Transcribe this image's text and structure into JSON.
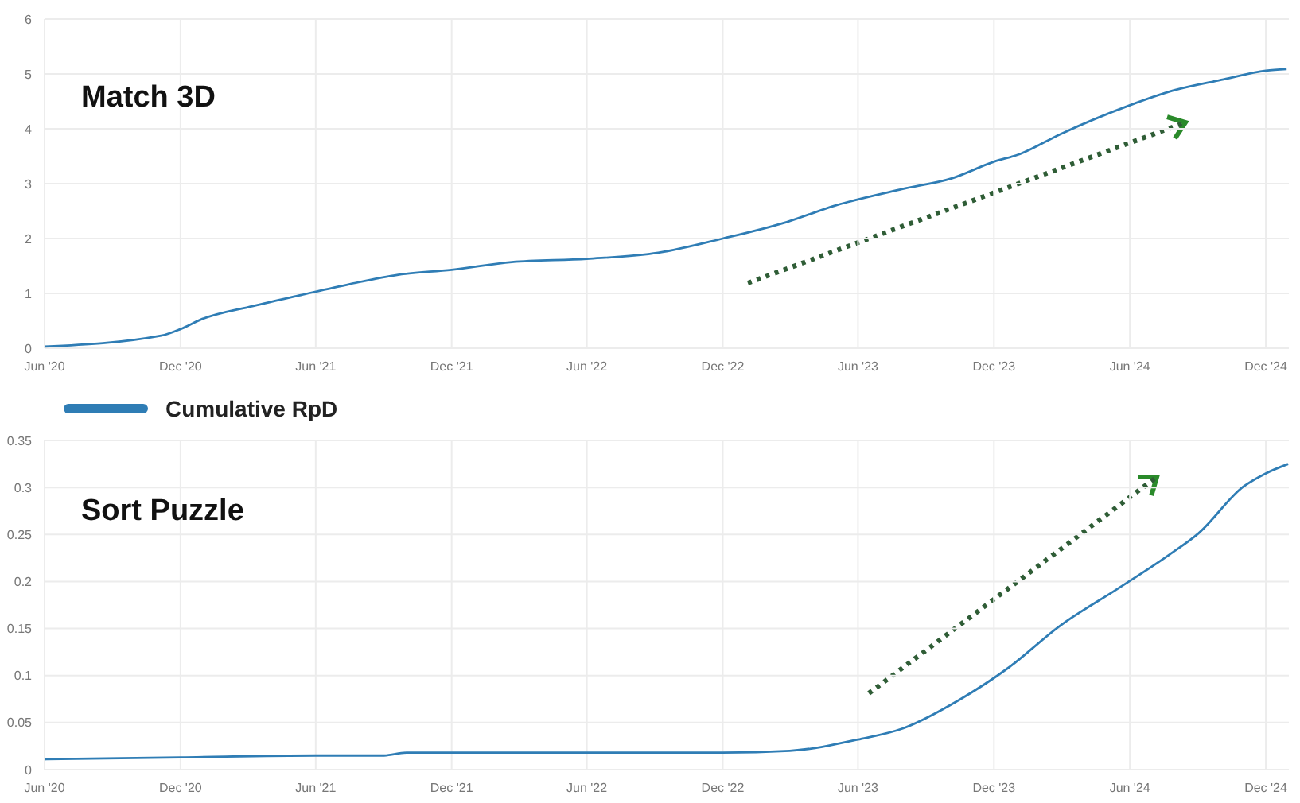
{
  "chart_data": [
    {
      "type": "line",
      "title": "Match 3D",
      "legend": "bottom",
      "grid": true,
      "x": [
        "2020-06-01",
        "2020-11-05",
        "2020-12-01",
        "2020-12-28",
        "2021-03-09",
        "2021-05-12",
        "2021-07-17",
        "2021-09-20",
        "2021-12-01",
        "2022-02-20",
        "2022-06-01",
        "2022-09-05",
        "2022-12-01",
        "2023-02-25",
        "2023-05-01",
        "2023-07-30",
        "2023-10-06",
        "2023-12-01",
        "2024-01-05",
        "2024-02-28",
        "2024-06-01",
        "2024-07-30",
        "2024-10-05",
        "2024-12-01",
        "2024-12-29"
      ],
      "series": [
        {
          "name": "Cumulative RpD",
          "color": "#2f7db5",
          "values": [
            0.03,
            0.23,
            0.35,
            0.52,
            0.77,
            0.97,
            1.17,
            1.34,
            1.43,
            1.57,
            1.63,
            1.74,
            2.0,
            2.3,
            2.6,
            2.9,
            3.1,
            3.4,
            3.54,
            3.9,
            4.43,
            4.7,
            4.9,
            5.06,
            5.09
          ]
        }
      ],
      "xlim": [
        "2020-06-01",
        "2025-01-01"
      ],
      "xticks": [
        {
          "value": "2020-06-01",
          "label": "Jun '20"
        },
        {
          "value": "2020-12-01",
          "label": "Dec '20"
        },
        {
          "value": "2021-06-01",
          "label": "Jun '21"
        },
        {
          "value": "2021-12-01",
          "label": "Dec '21"
        },
        {
          "value": "2022-06-01",
          "label": "Jun '22"
        },
        {
          "value": "2022-12-01",
          "label": "Dec '22"
        },
        {
          "value": "2023-06-01",
          "label": "Jun '23"
        },
        {
          "value": "2023-12-01",
          "label": "Dec '23"
        },
        {
          "value": "2024-06-01",
          "label": "Jun '24"
        },
        {
          "value": "2024-12-01",
          "label": "Dec '24"
        }
      ],
      "ylim": [
        0,
        6
      ],
      "yticks": [
        0,
        1,
        2,
        3,
        4,
        5,
        6
      ]
    },
    {
      "type": "line",
      "title": "Sort Puzzle",
      "grid": true,
      "x": [
        "2020-06-01",
        "2020-12-01",
        "2021-06-01",
        "2021-09-01",
        "2021-10-01",
        "2021-12-01",
        "2022-12-01",
        "2023-03-01",
        "2023-06-01",
        "2023-08-01",
        "2023-10-15",
        "2023-12-20",
        "2024-02-28",
        "2024-05-15",
        "2024-07-25",
        "2024-09-01",
        "2024-11-01",
        "2024-12-01",
        "2024-12-31"
      ],
      "series": [
        {
          "color": "#2f7db5",
          "values": [
            0.011,
            0.013,
            0.015,
            0.015,
            0.018,
            0.018,
            0.018,
            0.02,
            0.032,
            0.044,
            0.074,
            0.108,
            0.153,
            0.192,
            0.229,
            0.251,
            0.301,
            0.315,
            0.325
          ]
        }
      ],
      "xlim": [
        "2020-06-01",
        "2025-01-01"
      ],
      "xticks": [
        {
          "value": "2020-06-01",
          "label": "Jun '20"
        },
        {
          "value": "2020-12-01",
          "label": "Dec '20"
        },
        {
          "value": "2021-06-01",
          "label": "Jun '21"
        },
        {
          "value": "2021-12-01",
          "label": "Dec '21"
        },
        {
          "value": "2022-06-01",
          "label": "Jun '22"
        },
        {
          "value": "2022-12-01",
          "label": "Dec '22"
        },
        {
          "value": "2023-06-01",
          "label": "Jun '23"
        },
        {
          "value": "2023-12-01",
          "label": "Dec '23"
        },
        {
          "value": "2024-06-01",
          "label": "Jun '24"
        },
        {
          "value": "2024-12-01",
          "label": "Dec '24"
        }
      ],
      "ylim": [
        0,
        0.35
      ],
      "yticks": [
        0,
        0.05,
        0.1,
        0.15,
        0.2,
        0.25,
        0.3,
        0.35
      ]
    }
  ]
}
